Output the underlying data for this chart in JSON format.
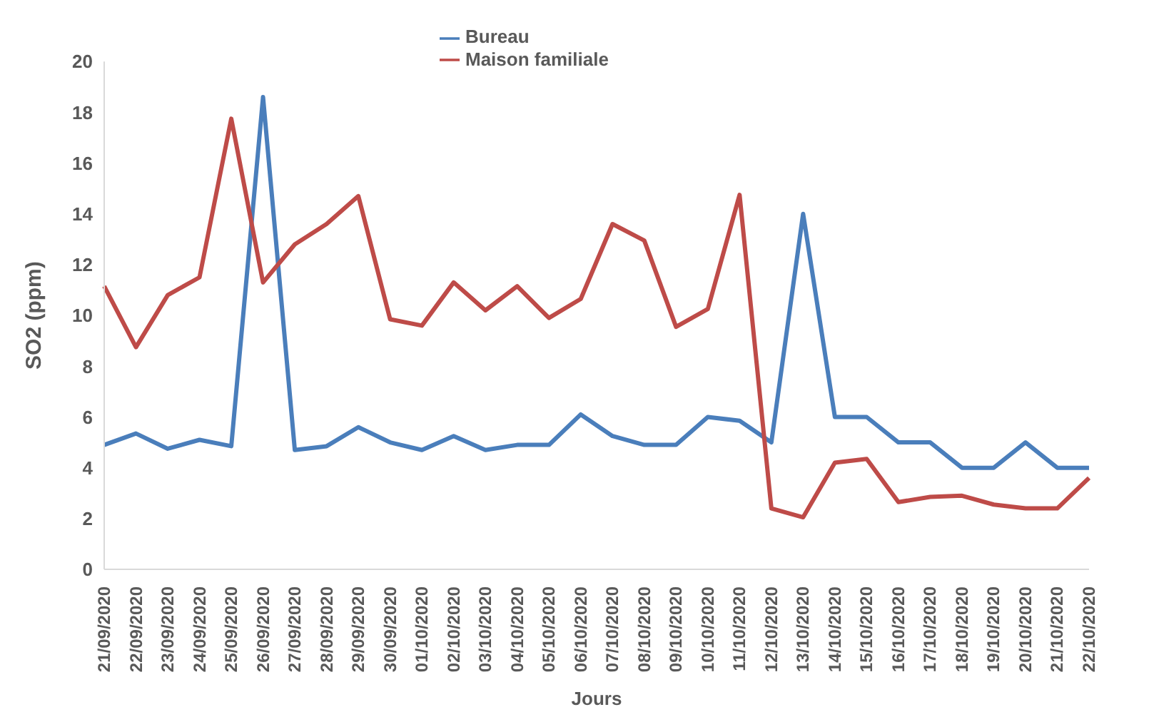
{
  "chart_data": {
    "type": "line",
    "xlabel": "Jours",
    "ylabel": "SO2  (ppm)",
    "categories": [
      "21/09/2020",
      "22/09/2020",
      "23/09/2020",
      "24/09/2020",
      "25/09/2020",
      "26/09/2020",
      "27/09/2020",
      "28/09/2020",
      "29/09/2020",
      "30/09/2020",
      "01/10/2020",
      "02/10/2020",
      "03/10/2020",
      "04/10/2020",
      "05/10/2020",
      "06/10/2020",
      "07/10/2020",
      "08/10/2020",
      "09/10/2020",
      "10/10/2020",
      "11/10/2020",
      "12/10/2020",
      "13/10/2020",
      "14/10/2020",
      "15/10/2020",
      "16/10/2020",
      "17/10/2020",
      "18/10/2020",
      "19/10/2020",
      "20/10/2020",
      "21/10/2020",
      "22/10/2020"
    ],
    "series": [
      {
        "name": "Bureau",
        "color": "#4a7ebb",
        "values": [
          4.9,
          5.35,
          4.75,
          5.1,
          4.85,
          18.6,
          4.7,
          4.85,
          5.6,
          5.0,
          4.7,
          5.25,
          4.7,
          4.9,
          4.9,
          6.1,
          5.25,
          4.9,
          4.9,
          6.0,
          5.85,
          5.0,
          14.0,
          6.0,
          6.0,
          5.0,
          5.0,
          4.0,
          4.0,
          5.0,
          4.0,
          4.0
        ]
      },
      {
        "name": "Maison familiale",
        "color": "#be4b48",
        "values": [
          11.15,
          8.75,
          10.8,
          11.5,
          17.75,
          11.3,
          12.8,
          13.6,
          14.7,
          9.85,
          9.6,
          11.3,
          10.2,
          11.15,
          9.9,
          10.65,
          13.6,
          12.95,
          9.55,
          10.25,
          14.75,
          2.4,
          2.05,
          4.2,
          4.35,
          2.65,
          2.85,
          2.9,
          2.55,
          2.4,
          2.4,
          3.6
        ]
      }
    ],
    "ylim": [
      0,
      20
    ],
    "yticks": [
      0,
      2,
      4,
      6,
      8,
      10,
      12,
      14,
      16,
      18,
      20
    ],
    "grid": false,
    "legend": "top",
    "marker": "none",
    "line_style": "solid"
  }
}
